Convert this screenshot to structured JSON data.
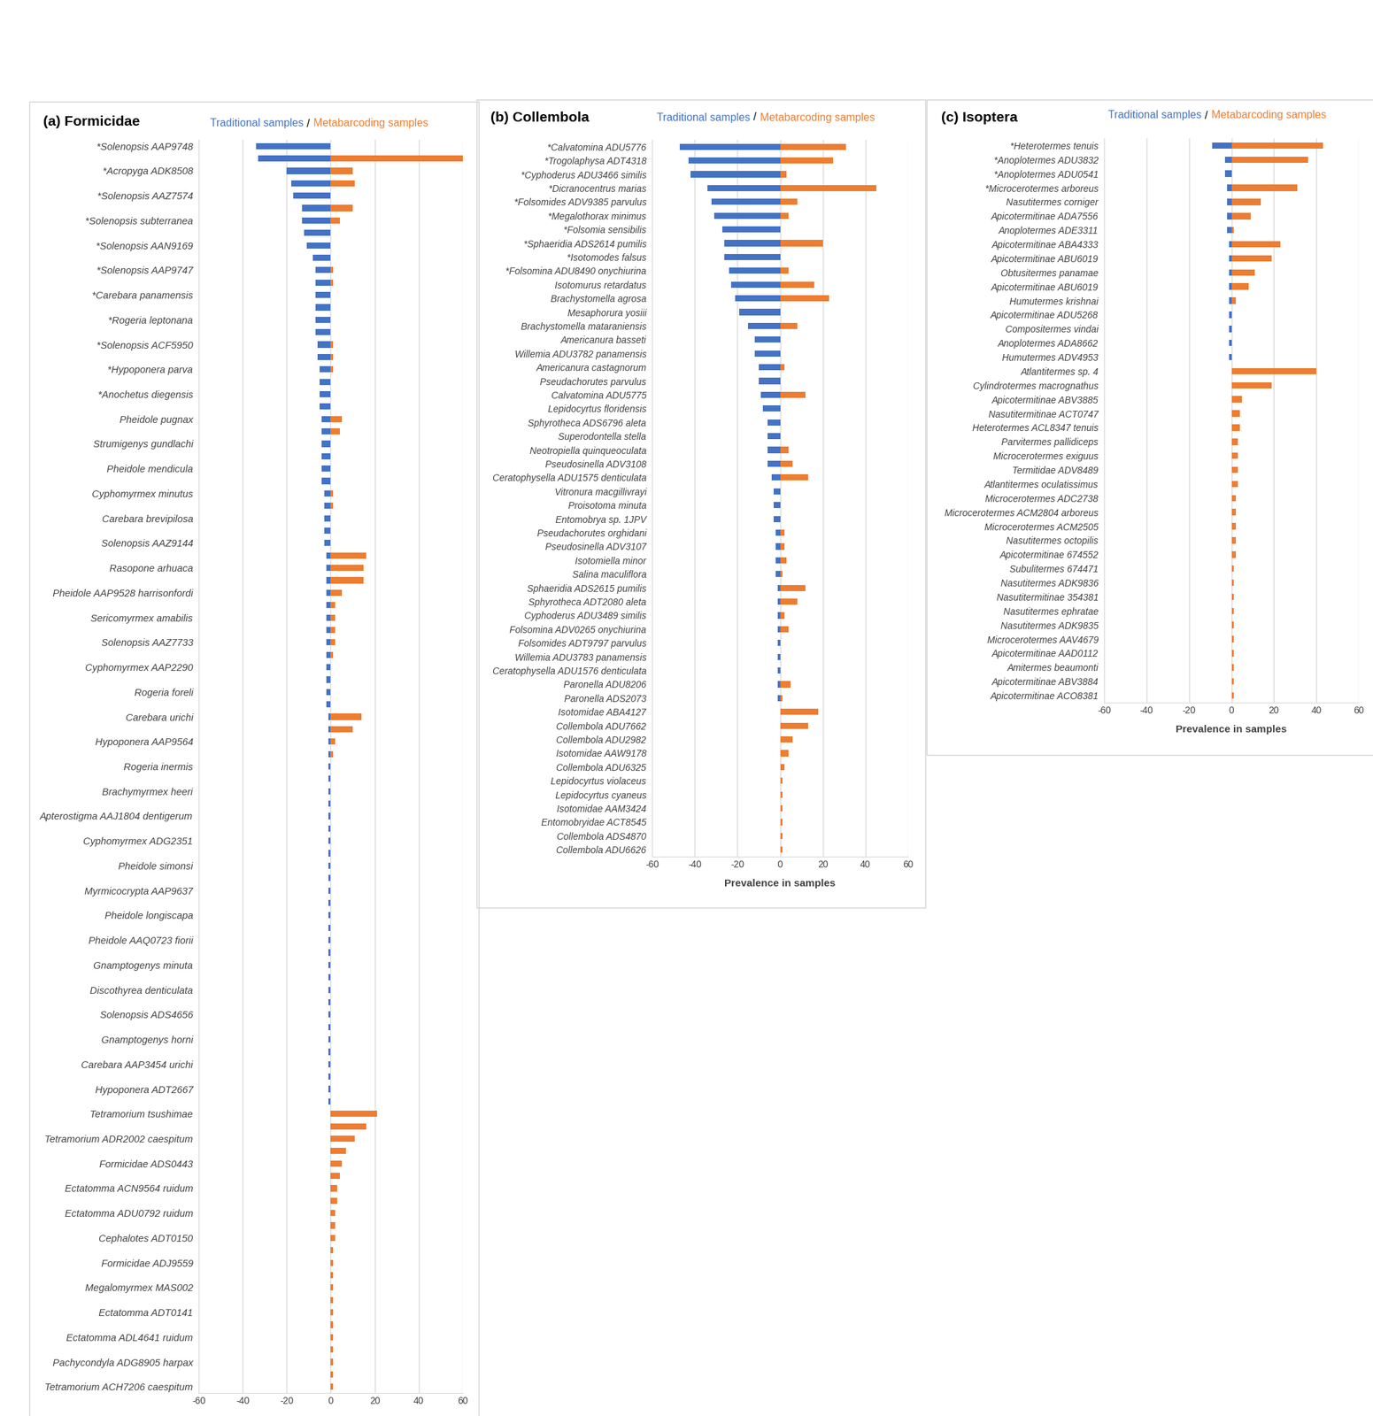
{
  "chart_data": [
    {
      "type": "bar",
      "orientation": "horizontal",
      "title": "(a) Formicidae",
      "legend_separator": "/",
      "categories": [
        "*Solenopsis AAP9748",
        null,
        "*Acropyga ADK8508",
        null,
        "*Solenopsis AAZ7574",
        null,
        "*Solenopsis subterranea",
        null,
        "*Solenopsis AAN9169",
        null,
        "*Solenopsis AAP9747",
        null,
        "*Carebara panamensis",
        null,
        "*Rogeria leptonana",
        null,
        "*Solenopsis ACF5950",
        null,
        "*Hypoponera parva",
        null,
        "*Anochetus diegensis",
        null,
        "Pheidole pugnax",
        null,
        "Strumigenys gundlachi",
        null,
        "Pheidole mendicula",
        null,
        "Cyphomyrmex minutus",
        null,
        "Carebara brevipilosa",
        null,
        "Solenopsis AAZ9144",
        null,
        "Rasopone arhuaca",
        null,
        "Pheidole AAP9528 harrisonfordi",
        null,
        "Sericomyrmex amabilis",
        null,
        "Solenopsis AAZ7733",
        null,
        "Cyphomyrmex AAP2290",
        null,
        "Rogeria foreli",
        null,
        "Carebara urichi",
        null,
        "Hypoponera AAP9564",
        null,
        "Rogeria inermis",
        null,
        "Brachymyrmex heeri",
        null,
        "Apterostigma AAJ1804 dentigerum",
        null,
        "Cyphomyrmex ADG2351",
        null,
        "Pheidole simonsi",
        null,
        "Myrmicocrypta AAP9637",
        null,
        "Pheidole longiscapa",
        null,
        "Pheidole AAQ0723 fiorii",
        null,
        "Gnamptogenys minuta",
        null,
        "Discothyrea denticulata",
        null,
        "Solenopsis ADS4656",
        null,
        "Gnamptogenys horni",
        null,
        "Carebara AAP3454 urichi",
        null,
        "Hypoponera ADT2667",
        null,
        "Tetramorium tsushimae",
        null,
        "Tetramorium ADR2002 caespitum",
        null,
        "Formicidae ADS0443",
        null,
        "Ectatomma ACN9564 ruidum",
        null,
        "Ectatomma ADU0792 ruidum",
        null,
        "Cephalotes ADT0150",
        null,
        "Formicidae ADJ9559",
        null,
        "Megalomyrmex MAS002",
        null,
        "Ectatomma ADT0141",
        null,
        "Ectatomma ADL4641 ruidum",
        null,
        "Pachycondyla ADG8905 harpax",
        null,
        "Tetramorium ACH7206 caespitum"
      ],
      "series": [
        {
          "name": "Traditional samples",
          "color": "#4472C4",
          "values": [
            -34,
            -33,
            -20,
            -18,
            -17,
            -13,
            -13,
            -12,
            -11,
            -8,
            -7,
            -7,
            -7,
            -7,
            -7,
            -7,
            -6,
            -6,
            -5,
            -5,
            -5,
            -5,
            -4,
            -4,
            -4,
            -4,
            -4,
            -4,
            -3,
            -3,
            -3,
            -3,
            -3,
            -2,
            -2,
            -2,
            -2,
            -2,
            -2,
            -2,
            -2,
            -2,
            -2,
            -2,
            -2,
            -2,
            -1,
            -1,
            -1,
            -1,
            -1,
            -1,
            -1,
            -1,
            -1,
            -1,
            -1,
            -1,
            -1,
            -1,
            -1,
            -1,
            -1,
            -1,
            -1,
            -1,
            -1,
            -1,
            -1,
            -1,
            -1,
            -1,
            -1,
            -1,
            -1,
            -1,
            -1,
            -1,
            0,
            0,
            0,
            0,
            0,
            0,
            0,
            0,
            0,
            0,
            0,
            0,
            0,
            0,
            0,
            0,
            0,
            0,
            0,
            0,
            0,
            0,
            0
          ]
        },
        {
          "name": "Metabarcoding samples",
          "color": "#ED7D31",
          "values": [
            0,
            60,
            10,
            11,
            0,
            10,
            4,
            0,
            0,
            0,
            1,
            1,
            0,
            0,
            0,
            0,
            1,
            1,
            1,
            0,
            0,
            0,
            5,
            4,
            0,
            0,
            0,
            0,
            1,
            1,
            0,
            0,
            0,
            16,
            15,
            15,
            5,
            2,
            2,
            2,
            2,
            1,
            0,
            0,
            0,
            0,
            14,
            10,
            2,
            1,
            0,
            0,
            0,
            0,
            0,
            0,
            0,
            0,
            0,
            0,
            0,
            0,
            0,
            0,
            0,
            0,
            0,
            0,
            0,
            0,
            0,
            0,
            0,
            0,
            0,
            0,
            0,
            0,
            21,
            16,
            11,
            7,
            5,
            4,
            3,
            3,
            2,
            2,
            2,
            1,
            1,
            1,
            1,
            1,
            1,
            1,
            1,
            1,
            1,
            1,
            1
          ]
        }
      ],
      "xlim": [
        -60,
        60
      ],
      "xticks": [
        -60,
        -40,
        -20,
        0,
        20,
        40,
        60
      ],
      "grid": true
    },
    {
      "type": "bar",
      "orientation": "horizontal",
      "title": "(b) Collembola",
      "legend_separator": "/",
      "xlabel": "Prevalence in samples",
      "categories": [
        "*Calvatomina ADU5776",
        "*Trogolaphysa ADT4318",
        "*Cyphoderus ADU3466 similis",
        "*Dicranocentrus marias",
        "*Folsomides ADV9385 parvulus",
        "*Megalothorax minimus",
        "*Folsomia sensibilis",
        "*Sphaeridia ADS2614 pumilis",
        "*Isotomodes falsus",
        "*Folsomina ADU8490 onychiurina",
        "Isotomurus retardatus",
        "Brachystomella agrosa",
        "Mesaphorura yosiii",
        "Brachystomella mataraniensis",
        "Americanura basseti",
        "Willemia ADU3782 panamensis",
        "Americanura castagnorum",
        "Pseudachorutes parvulus",
        "Calvatomina ADU5775",
        "Lepidocyrtus floridensis",
        "Sphyrotheca ADS6796 aleta",
        "Superodontella stella",
        "Neotropiella quinqueoculata",
        "Pseudosinella ADV3108",
        "Ceratophysella ADU1575 denticulata",
        "Vitronura macgillivrayi",
        "Proisotoma minuta",
        "Entomobrya sp. 1JPV",
        "Pseudachorutes orghidani",
        "Pseudosinella ADV3107",
        "Isotomiella minor",
        "Salina maculiflora",
        "Sphaeridia ADS2615 pumilis",
        "Sphyrotheca ADT2080 aleta",
        "Cyphoderus ADU3489 similis",
        "Folsomina ADV0265 onychiurina",
        "Folsomides ADT9797 parvulus",
        "Willemia ADU3783 panamensis",
        "Ceratophysella ADU1576 denticulata",
        "Paronella ADU8206",
        "Paronella ADS2073",
        "Isotomidae ABA4127",
        "Collembola ADU7662",
        "Collembola ADU2982",
        "Isotomidae AAW9178",
        "Collembola ADU6325",
        "Lepidocyrtus violaceus",
        "Lepidocyrtus cyaneus",
        "Isotomidae AAM3424",
        "Entomobryidae ACT8545",
        "Collembola ADS4870",
        "Collembola ADU6626"
      ],
      "series": [
        {
          "name": "Traditional samples",
          "color": "#4472C4",
          "values": [
            -47,
            -43,
            -42,
            -34,
            -32,
            -31,
            -27,
            -26,
            -26,
            -24,
            -23,
            -21,
            -19,
            -15,
            -12,
            -12,
            -10,
            -10,
            -9,
            -8,
            -6,
            -6,
            -6,
            -6,
            -4,
            -3,
            -3,
            -3,
            -2,
            -2,
            -2,
            -2,
            -1,
            -1,
            -1,
            -1,
            -1,
            -1,
            -1,
            -1,
            -1,
            0,
            0,
            0,
            0,
            0,
            0,
            0,
            0,
            0,
            0,
            0
          ]
        },
        {
          "name": "Metabarcoding samples",
          "color": "#ED7D31",
          "values": [
            31,
            25,
            3,
            45,
            8,
            4,
            0,
            20,
            0,
            4,
            16,
            23,
            0,
            8,
            0,
            0,
            2,
            0,
            12,
            0,
            0,
            0,
            4,
            6,
            13,
            0,
            0,
            0,
            2,
            2,
            3,
            1,
            12,
            8,
            2,
            4,
            0,
            0,
            0,
            5,
            1,
            18,
            13,
            6,
            4,
            2,
            1,
            1,
            1,
            1,
            1,
            1
          ]
        }
      ],
      "xlim": [
        -60,
        60
      ],
      "xticks": [
        -60,
        -40,
        -20,
        0,
        20,
        40,
        60
      ],
      "grid": true
    },
    {
      "type": "bar",
      "orientation": "horizontal",
      "title": "(c) Isoptera",
      "legend_separator": "/",
      "xlabel": "Prevalence in samples",
      "categories": [
        "*Heterotermes tenuis",
        "*Anoplotermes ADU3832",
        "*Anoplotermes ADU0541",
        "*Microcerotermes arboreus",
        "Nasutitermes corniger",
        "Apicotermitinae ADA7556",
        "Anoplotermes ADE3311",
        "Apicotermitinae ABA4333",
        "Apicotermitinae ABU6019",
        "Obtusitermes panamae",
        "Apicotermitinae ABU6019",
        "Humutermes krishnai",
        "Apicotermitinae ADU5268",
        "Compositermes vindai",
        "Anoplotermes ADA8662",
        "Humutermes ADV4953",
        "Atlantitermes sp. 4",
        "Cylindrotermes macrognathus",
        "Apicotermitinae ABV3885",
        "Nasutitermitinae ACT0747",
        "Heterotermes ACL8347 tenuis",
        "Parvitermes pallidiceps",
        "Microcerotermes exiguus",
        "Termitidae ADV8489",
        "Atlantitermes oculatissimus",
        "Microcerotermes ADC2738",
        "Microcerotermes ACM2804 arboreus",
        "Microcerotermes ACM2505",
        "Nasutitermes octopilis",
        "Apicotermitinae 674552",
        "Subulitermes 674471",
        "Nasutitermes ADK9836",
        "Nasutitermitinae 354381",
        "Nasutitermes ephratae",
        "Nasutitermes ADK9835",
        "Microcerotermes AAV4679",
        "Apicotermitinae AAD0112",
        "Amitermes beaumonti",
        "Apicotermitinae ABV3884",
        "Apicotermitinae ACO8381"
      ],
      "series": [
        {
          "name": "Traditional samples",
          "color": "#4472C4",
          "values": [
            -9,
            -3,
            -3,
            -2,
            -2,
            -2,
            -2,
            -1,
            -1,
            -1,
            -1,
            -1,
            -1,
            -1,
            -1,
            -1,
            0,
            0,
            0,
            0,
            0,
            0,
            0,
            0,
            0,
            0,
            0,
            0,
            0,
            0,
            0,
            0,
            0,
            0,
            0,
            0,
            0,
            0,
            0,
            0
          ]
        },
        {
          "name": "Metabarcoding samples",
          "color": "#ED7D31",
          "values": [
            43,
            36,
            0,
            31,
            14,
            9,
            1,
            23,
            19,
            11,
            8,
            2,
            0,
            0,
            0,
            0,
            40,
            19,
            5,
            4,
            4,
            3,
            3,
            3,
            3,
            2,
            2,
            2,
            2,
            2,
            1,
            1,
            1,
            1,
            1,
            1,
            1,
            1,
            1,
            1
          ]
        }
      ],
      "xlim": [
        -60,
        60
      ],
      "xticks": [
        -60,
        -40,
        -20,
        0,
        20,
        40,
        60
      ],
      "grid": true
    }
  ]
}
